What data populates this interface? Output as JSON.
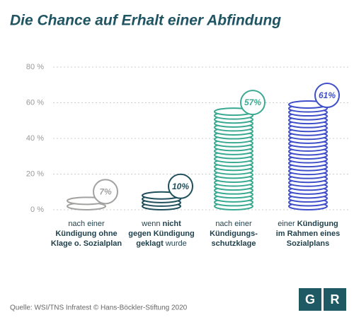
{
  "chart_data": {
    "type": "bar",
    "title": "Die Chance auf Erhalt einer Abfindung",
    "categories": [
      [
        [
          {
            "text": "nach einer",
            "bold": false
          }
        ],
        [
          {
            "text": "Kündigung ohne",
            "bold": true
          }
        ],
        [
          {
            "text": "Klage o. Sozialplan",
            "bold": true
          }
        ]
      ],
      [
        [
          {
            "text": "wenn ",
            "bold": false
          },
          {
            "text": "nicht",
            "bold": true
          }
        ],
        [
          {
            "text": "gegen Kündigung",
            "bold": true
          }
        ],
        [
          {
            "text": "geklagt",
            "bold": true
          },
          {
            "text": " wurde",
            "bold": false
          }
        ]
      ],
      [
        [
          {
            "text": "nach einer",
            "bold": false
          }
        ],
        [
          {
            "text": "Kündigungs-",
            "bold": true
          }
        ],
        [
          {
            "text": "schutzklage",
            "bold": true
          }
        ]
      ],
      [
        [
          {
            "text": "einer ",
            "bold": false
          },
          {
            "text": "Kündigung",
            "bold": true
          }
        ],
        [
          {
            "text": "im Rahmen eines",
            "bold": true
          }
        ],
        [
          {
            "text": "Sozialplans",
            "bold": true
          }
        ]
      ]
    ],
    "values": [
      7,
      10,
      57,
      61
    ],
    "value_labels": [
      "7%",
      "10%",
      "57%",
      "61%"
    ],
    "colors": [
      "#a3a2a1",
      "#1f4f5c",
      "#3aa991",
      "#3f4fc9"
    ],
    "ylim": [
      0,
      80
    ],
    "yticks": [
      {
        "value": 0,
        "label": "0 %"
      },
      {
        "value": 20,
        "label": "20 %"
      },
      {
        "value": 40,
        "label": "40 %"
      },
      {
        "value": 60,
        "label": "60 %"
      },
      {
        "value": 80,
        "label": "80 %"
      }
    ],
    "grid": true,
    "source": "Quelle: WSI/TNS Infratest © Hans-Böckler-Stiftung 2020",
    "logo": [
      "G",
      "R"
    ]
  }
}
